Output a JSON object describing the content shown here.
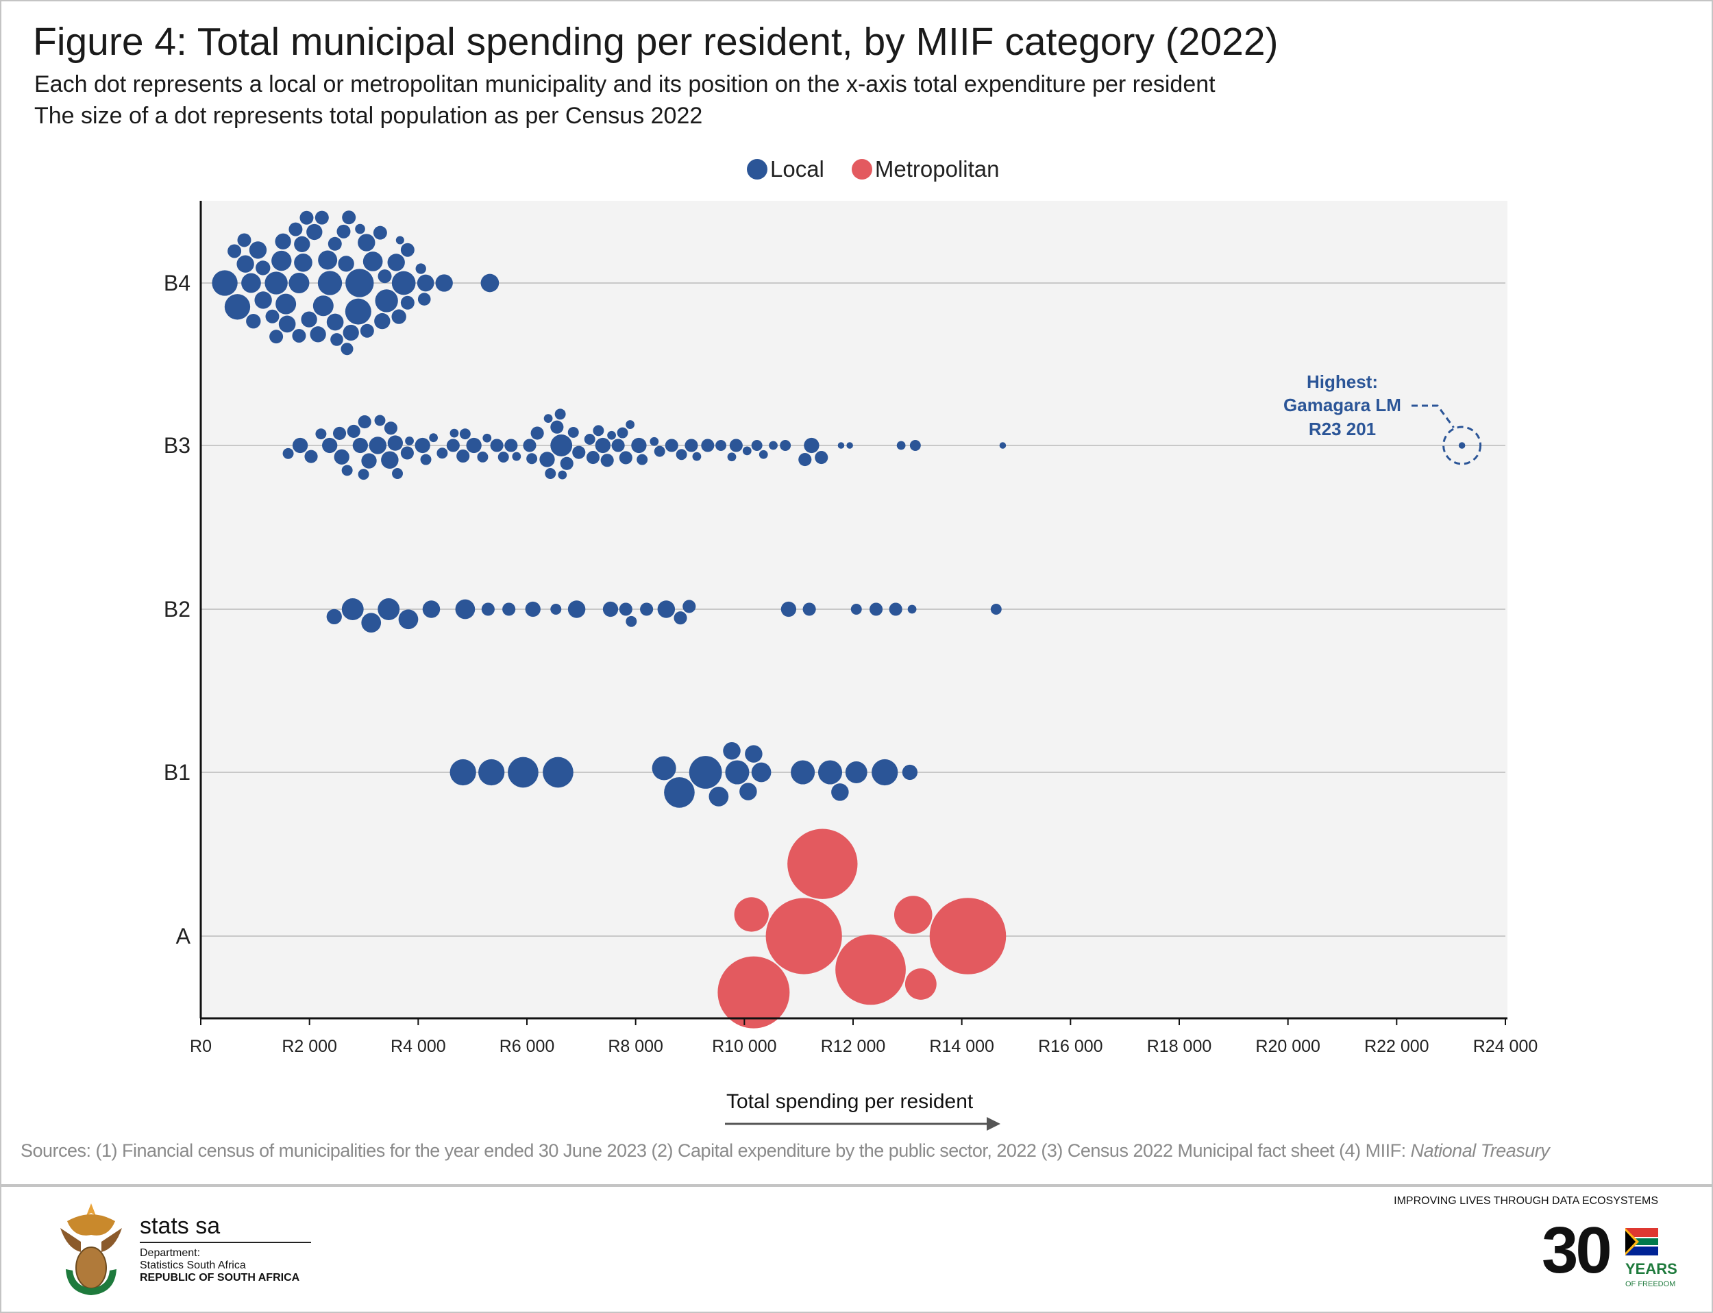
{
  "header": {
    "title": "Figure 4: Total municipal spending per resident, by MIIF category (2022)",
    "subtitle_1": "Each dot represents a local or metropolitan municipality and its position on the x-axis total expenditure per resident",
    "subtitle_2": "The size of a dot represents total population as per Census 2022"
  },
  "legend": [
    {
      "label": "Local",
      "color": "#2b5597"
    },
    {
      "label": "Metropolitan",
      "color": "#e35a5f"
    }
  ],
  "chart_data": {
    "type": "scatter",
    "subtype": "beeswarm",
    "xlabel": "Total spending per resident",
    "ylabel": "",
    "xlim": [
      0,
      24000
    ],
    "x_ticks": [
      0,
      2000,
      4000,
      6000,
      8000,
      10000,
      12000,
      14000,
      16000,
      18000,
      20000,
      22000,
      24000
    ],
    "x_tick_labels": [
      "R0",
      "R2 000",
      "R4 000",
      "R6 000",
      "R8 000",
      "R10 000",
      "R12 000",
      "R14 000",
      "R16 000",
      "R18 000",
      "R20 000",
      "R22 000",
      "R24 000"
    ],
    "categories": [
      "B4",
      "B3",
      "B2",
      "B1",
      "A"
    ],
    "grid": "horizontal lines at categories",
    "size_encoding": "population (thousands, estimated from dot size)",
    "series": [
      {
        "name": "Local",
        "color": "#2b5597",
        "points": {
          "B4": [
            [
              442,
              538
            ],
            [
              619,
              154
            ],
            [
              674,
              538
            ],
            [
              800,
              154
            ],
            [
              821,
              248
            ],
            [
              926,
              317
            ],
            [
              968,
              176
            ],
            [
              1052,
              248
            ],
            [
              1144,
              176
            ],
            [
              1149,
              248
            ],
            [
              1317,
              154
            ],
            [
              1388,
              154
            ],
            [
              1388,
              429
            ],
            [
              1485,
              332
            ],
            [
              1514,
              210
            ],
            [
              1565,
              347
            ],
            [
              1590,
              235
            ],
            [
              1745,
              154
            ],
            [
              1808,
              347
            ],
            [
              1808,
              154
            ],
            [
              1863,
              210
            ],
            [
              1884,
              274
            ],
            [
              1947,
              154
            ],
            [
              1993,
              210
            ],
            [
              2090,
              210
            ],
            [
              2157,
              210
            ],
            [
              2229,
              154
            ],
            [
              2254,
              347
            ],
            [
              2334,
              302
            ],
            [
              2376,
              482
            ],
            [
              2468,
              154
            ],
            [
              2472,
              235
            ],
            [
              2502,
              134
            ],
            [
              2628,
              154
            ],
            [
              2674,
              210
            ],
            [
              2691,
              125
            ],
            [
              2725,
              154
            ],
            [
              2763,
              210
            ],
            [
              2897,
              557
            ],
            [
              2922,
              659
            ],
            [
              2931,
              83
            ],
            [
              3048,
              248
            ],
            [
              3061,
              154
            ],
            [
              3166,
              317
            ],
            [
              3301,
              154
            ],
            [
              3338,
              210
            ],
            [
              3385,
              154
            ],
            [
              3418,
              429
            ],
            [
              3595,
              248
            ],
            [
              3645,
              176
            ],
            [
              3666,
              56
            ],
            [
              3733,
              464
            ],
            [
              3805,
              154
            ],
            [
              3805,
              154
            ],
            [
              4049,
              91
            ],
            [
              4112,
              134
            ],
            [
              4137,
              235
            ],
            [
              4477,
              248
            ],
            [
              5318,
              274
            ]
          ],
          "B3": [
            [
              1608,
              98
            ],
            [
              1829,
              192
            ],
            [
              2030,
              141
            ],
            [
              2211,
              98
            ],
            [
              2372,
              192
            ],
            [
              2553,
              141
            ],
            [
              2593,
              192
            ],
            [
              2693,
              98
            ],
            [
              2814,
              141
            ],
            [
              2935,
              192
            ],
            [
              2995,
              98
            ],
            [
              3015,
              141
            ],
            [
              3095,
              192
            ],
            [
              3256,
              251
            ],
            [
              3296,
              98
            ],
            [
              3477,
              251
            ],
            [
              3497,
              141
            ],
            [
              3578,
              192
            ],
            [
              3618,
              98
            ],
            [
              3799,
              141
            ],
            [
              3839,
              63
            ],
            [
              4080,
              192
            ],
            [
              4141,
              98
            ],
            [
              4281,
              63
            ],
            [
              4442,
              98
            ],
            [
              4643,
              141
            ],
            [
              4663,
              63
            ],
            [
              4824,
              141
            ],
            [
              4864,
              98
            ],
            [
              5025,
              192
            ],
            [
              5186,
              98
            ],
            [
              5266,
              63
            ],
            [
              5447,
              141
            ],
            [
              5568,
              98
            ],
            [
              5708,
              141
            ],
            [
              5809,
              63
            ],
            [
              6050,
              141
            ],
            [
              6090,
              98
            ],
            [
              6191,
              141
            ],
            [
              6372,
              192
            ],
            [
              6392,
              63
            ],
            [
              6432,
              98
            ],
            [
              6553,
              141
            ],
            [
              6613,
              98
            ],
            [
              6633,
              392
            ],
            [
              6653,
              63
            ],
            [
              6734,
              141
            ],
            [
              6854,
              98
            ],
            [
              6955,
              141
            ],
            [
              7156,
              98
            ],
            [
              7216,
              141
            ],
            [
              7316,
              98
            ],
            [
              7397,
              192
            ],
            [
              7477,
              141
            ],
            [
              7558,
              63
            ],
            [
              7678,
              141
            ],
            [
              7759,
              98
            ],
            [
              7819,
              141
            ],
            [
              7899,
              63
            ],
            [
              8060,
              192
            ],
            [
              8120,
              98
            ],
            [
              8342,
              63
            ],
            [
              8442,
              98
            ],
            [
              8663,
              141
            ],
            [
              8844,
              98
            ],
            [
              9025,
              141
            ],
            [
              9125,
              63
            ],
            [
              9326,
              141
            ],
            [
              9568,
              98
            ],
            [
              9769,
              63
            ],
            [
              9849,
              141
            ],
            [
              10050,
              63
            ],
            [
              10231,
              98
            ],
            [
              10352,
              63
            ],
            [
              10532,
              63
            ],
            [
              10754,
              98
            ],
            [
              11115,
              141
            ],
            [
              11236,
              192
            ],
            [
              11417,
              141
            ],
            [
              11779,
              35
            ],
            [
              11939,
              35
            ],
            [
              12884,
              63
            ],
            [
              13145,
              98
            ],
            [
              14753,
              35
            ],
            [
              23201,
              35
            ]
          ],
          "B2": [
            [
              2455,
              192
            ],
            [
              2795,
              392
            ],
            [
              3135,
              318
            ],
            [
              3457,
              392
            ],
            [
              3819,
              318
            ],
            [
              4241,
              251
            ],
            [
              4864,
              318
            ],
            [
              5286,
              141
            ],
            [
              5668,
              141
            ],
            [
              6110,
              192
            ],
            [
              6533,
              98
            ],
            [
              6915,
              251
            ],
            [
              7538,
              192
            ],
            [
              7819,
              141
            ],
            [
              7920,
              98
            ],
            [
              8201,
              141
            ],
            [
              8563,
              251
            ],
            [
              8824,
              141
            ],
            [
              8985,
              141
            ],
            [
              10814,
              192
            ],
            [
              11195,
              141
            ],
            [
              12060,
              98
            ],
            [
              12423,
              141
            ],
            [
              12784,
              141
            ],
            [
              13085,
              63
            ],
            [
              14632,
              98
            ]
          ],
          "B1": [
            [
              4824,
              565
            ],
            [
              5347,
              565
            ],
            [
              5930,
              769
            ],
            [
              6573,
              769
            ],
            [
              8523,
              474
            ],
            [
              8804,
              769
            ],
            [
              9286,
              882
            ],
            [
              9528,
              318
            ],
            [
              9769,
              251
            ],
            [
              9869,
              474
            ],
            [
              10070,
              251
            ],
            [
              10171,
              251
            ],
            [
              10312,
              318
            ],
            [
              11075,
              474
            ],
            [
              11578,
              474
            ],
            [
              11759,
              251
            ],
            [
              12060,
              392
            ],
            [
              12583,
              565
            ],
            [
              13045,
              192
            ]
          ],
          "A": []
        }
      },
      {
        "name": "Metropolitan",
        "color": "#e35a5f",
        "points": {
          "A": [
            [
              10171,
              4250
            ],
            [
              11437,
              4040
            ],
            [
              11095,
              4770
            ],
            [
              12322,
              4070
            ],
            [
              14111,
              4800
            ],
            [
              13106,
              1190
            ],
            [
              10131,
              975
            ],
            [
              13246,
              810
            ]
          ]
        }
      }
    ],
    "annotation": {
      "line1": "Highest:",
      "line2": "Gamagara LM",
      "line3": "R23 201",
      "category": "B3",
      "x": 23201
    }
  },
  "footer": {
    "sources_prefix": "Sources: (1) Financial census of municipalities for the year ended 30 June 2023  (2) Capital expenditure by the public sector, 2022  (3) Census 2022 Municipal fact sheet  (4) MIIF: ",
    "sources_italic": "National Treasury",
    "logo_name": "stats sa",
    "dept_1": "Department:",
    "dept_2": "Statistics South Africa",
    "dept_3": "REPUBLIC OF SOUTH AFRICA",
    "tagline": "IMPROVING LIVES THROUGH DATA ECOSYSTEMS",
    "anniv_number": "30",
    "anniv_years": "YEARS",
    "anniv_freedom": "OF FREEDOM"
  }
}
